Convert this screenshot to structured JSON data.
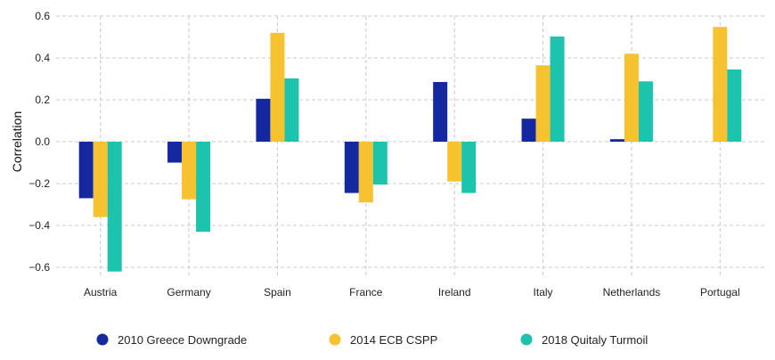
{
  "chart_data": {
    "type": "bar",
    "title": "",
    "xlabel": "",
    "ylabel": "Correlation",
    "ylim": [
      -0.65,
      0.6
    ],
    "yticks": [
      0.6,
      0.4,
      0.2,
      0.0,
      -0.2,
      -0.4,
      -0.6
    ],
    "ytick_labels": [
      "0.6",
      "0.4",
      "0.2",
      "0.0",
      "−0.2",
      "−0.4",
      "−0.6"
    ],
    "grid": true,
    "legend_position": "bottom",
    "categories": [
      "Austria",
      "Germany",
      "Spain",
      "France",
      "Ireland",
      "Italy",
      "Netherlands",
      "Portugal"
    ],
    "series": [
      {
        "name": "2010 Greece Downgrade",
        "color": "#1428a0",
        "values": [
          -0.27,
          -0.1,
          0.205,
          -0.245,
          0.285,
          0.11,
          0.012,
          null
        ]
      },
      {
        "name": "2014 ECB CSPP",
        "color": "#f7c22f",
        "values": [
          -0.36,
          -0.275,
          0.52,
          -0.29,
          -0.19,
          0.365,
          0.42,
          0.548
        ]
      },
      {
        "name": "2018 Quitaly Turmoil",
        "color": "#1cc3ad",
        "values": [
          -0.62,
          -0.43,
          0.302,
          -0.205,
          -0.245,
          0.502,
          0.288,
          0.345
        ]
      }
    ]
  }
}
